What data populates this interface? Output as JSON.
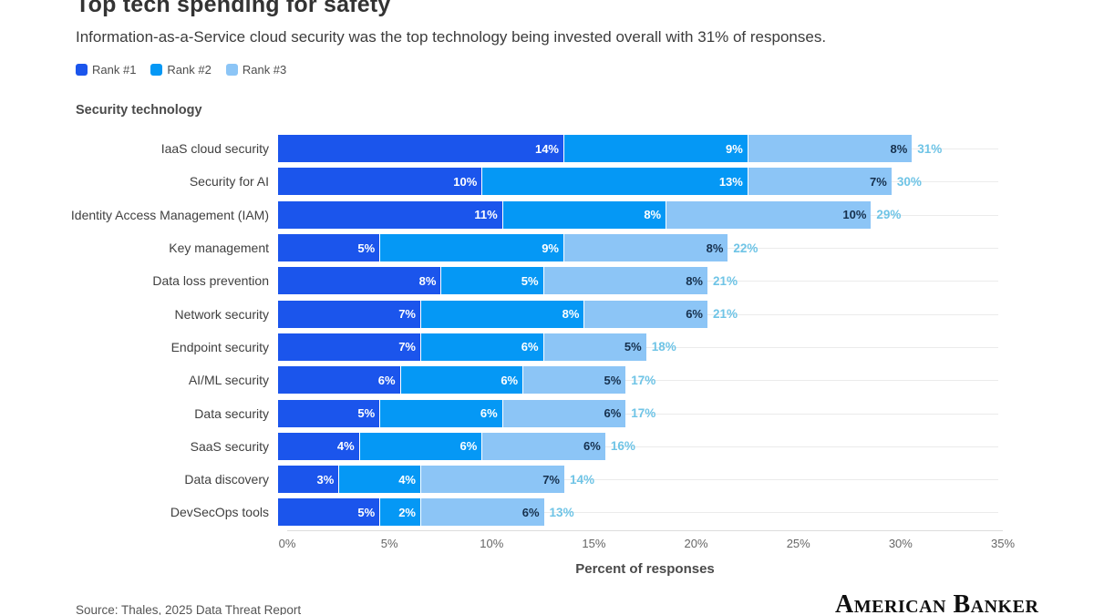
{
  "header": {
    "title": "Top tech spending for safety",
    "subtitle": "Information-as-a-Service cloud security was the top technology being invested overall with 31% of responses."
  },
  "legend": [
    {
      "label": "Rank #1",
      "color": "#1b55ec"
    },
    {
      "label": "Rank #2",
      "color": "#0598f5"
    },
    {
      "label": "Rank #3",
      "color": "#8cc5f6"
    }
  ],
  "chart_data": {
    "type": "bar",
    "orientation": "horizontal-stacked",
    "y_axis_title": "Security technology",
    "xlabel": "Percent of responses",
    "xlim": [
      0,
      35
    ],
    "x_ticks": [
      "0%",
      "5%",
      "10%",
      "15%",
      "20%",
      "25%",
      "30%",
      "35%"
    ],
    "grid": "horizontal-row-lines",
    "legend_position": "top-left",
    "categories": [
      "IaaS cloud security",
      "Security for AI",
      "Identity Access Management (IAM)",
      "Key management",
      "Data loss prevention",
      "Network security",
      "Endpoint security",
      "AI/ML security",
      "Data security",
      "SaaS security",
      "Data discovery",
      "DevSecOps tools"
    ],
    "series": [
      {
        "name": "Rank #1",
        "color": "#1b55ec",
        "label_color": "#ffffff",
        "values": [
          14,
          10,
          11,
          5,
          8,
          7,
          7,
          6,
          5,
          4,
          3,
          5
        ]
      },
      {
        "name": "Rank #2",
        "color": "#0598f5",
        "label_color": "#ffffff",
        "values": [
          9,
          13,
          8,
          9,
          5,
          8,
          6,
          6,
          6,
          6,
          4,
          2
        ]
      },
      {
        "name": "Rank #3",
        "color": "#8cc5f6",
        "label_color": "#16304d",
        "values": [
          8,
          7,
          10,
          8,
          8,
          6,
          5,
          5,
          6,
          6,
          7,
          6
        ]
      }
    ],
    "totals": [
      31,
      30,
      29,
      22,
      21,
      21,
      18,
      17,
      17,
      16,
      14,
      13
    ],
    "total_label_color": "#6fc4e6"
  },
  "footer": {
    "source": "Source: Thales, 2025 Data Threat Report",
    "logo": "American Banker"
  }
}
